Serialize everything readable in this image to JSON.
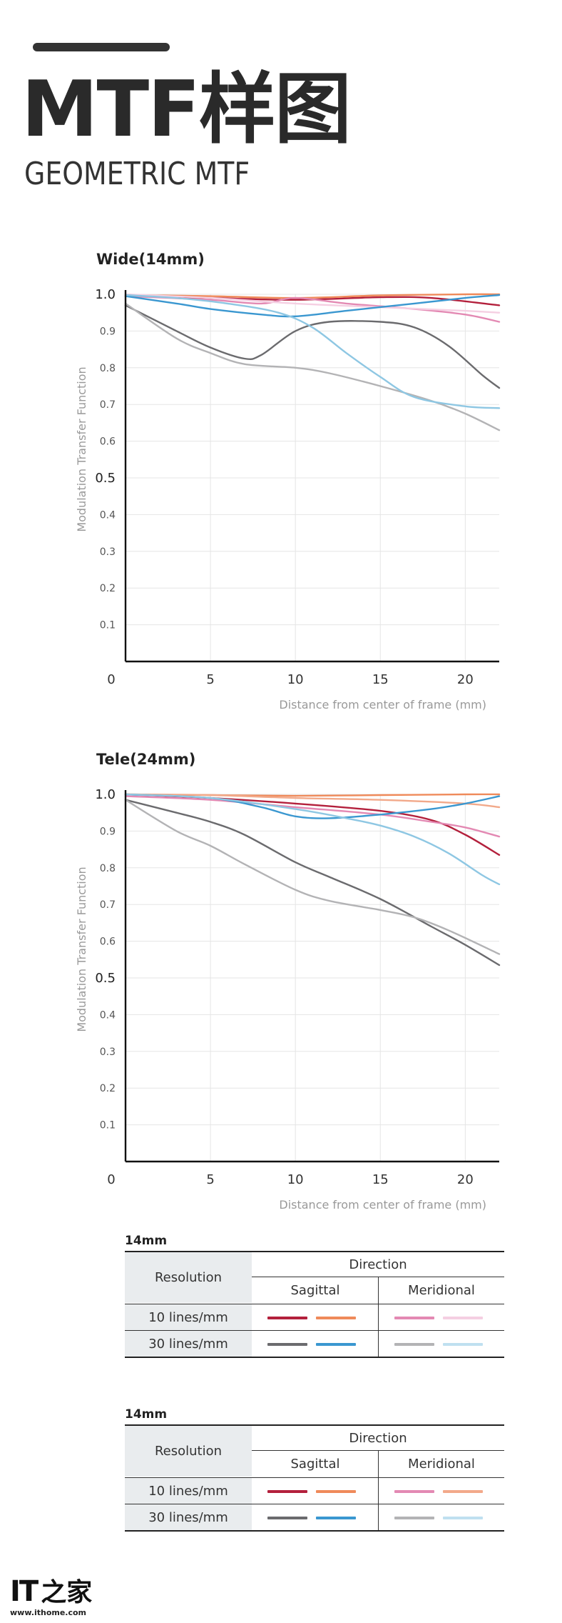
{
  "header": {
    "title": "MTF样图",
    "subtitle": "GEOMETRIC MTF"
  },
  "chart_data": [
    {
      "type": "line",
      "title": "Wide(14mm)",
      "xlabel": "Distance from center of frame (mm)",
      "ylabel": "Modulation Transfer Function",
      "xlim": [
        0,
        22
      ],
      "ylim": [
        0,
        1.0
      ],
      "xticks": [
        "0",
        "5",
        "10",
        "15",
        "20"
      ],
      "yticks": [
        "0.1",
        "0.2",
        "0.3",
        "0.4",
        "0.5",
        "0.6",
        "0.7",
        "0.8",
        "0.9",
        "1.0"
      ],
      "grid": true,
      "series": [
        {
          "color": "#b3203c",
          "points": [
            [
              0,
              0.995
            ],
            [
              5,
              0.99
            ],
            [
              10,
              0.985
            ],
            [
              15,
              0.992
            ],
            [
              18,
              0.99
            ],
            [
              22,
              0.97
            ]
          ]
        },
        {
          "color": "#ef8a5a",
          "points": [
            [
              0,
              0.998
            ],
            [
              5,
              0.995
            ],
            [
              10,
              0.99
            ],
            [
              15,
              0.997
            ],
            [
              20,
              1.0
            ],
            [
              22,
              1.0
            ]
          ]
        },
        {
          "color": "#e389b3",
          "points": [
            [
              0,
              0.995
            ],
            [
              5,
              0.985
            ],
            [
              8,
              0.975
            ],
            [
              10,
              0.99
            ],
            [
              13,
              0.975
            ],
            [
              17,
              0.96
            ],
            [
              20,
              0.945
            ],
            [
              22,
              0.925
            ]
          ]
        },
        {
          "color": "#f5cfe2",
          "points": [
            [
              0,
              1.0
            ],
            [
              5,
              0.99
            ],
            [
              10,
              0.975
            ],
            [
              15,
              0.965
            ],
            [
              20,
              0.955
            ],
            [
              22,
              0.95
            ]
          ]
        },
        {
          "color": "#6b6b6e",
          "points": [
            [
              0,
              0.97
            ],
            [
              3,
              0.9
            ],
            [
              5,
              0.855
            ],
            [
              7,
              0.825
            ],
            [
              8,
              0.835
            ],
            [
              10,
              0.9
            ],
            [
              12,
              0.925
            ],
            [
              15,
              0.925
            ],
            [
              17,
              0.91
            ],
            [
              19,
              0.86
            ],
            [
              21,
              0.78
            ],
            [
              22,
              0.745
            ]
          ]
        },
        {
          "color": "#3a97d0",
          "points": [
            [
              0,
              0.995
            ],
            [
              3,
              0.975
            ],
            [
              5,
              0.96
            ],
            [
              8,
              0.945
            ],
            [
              10,
              0.94
            ],
            [
              13,
              0.955
            ],
            [
              17,
              0.975
            ],
            [
              20,
              0.99
            ],
            [
              22,
              0.998
            ]
          ]
        },
        {
          "color": "#b3b3b5",
          "points": [
            [
              0,
              0.975
            ],
            [
              3,
              0.88
            ],
            [
              5,
              0.84
            ],
            [
              7,
              0.81
            ],
            [
              10,
              0.8
            ],
            [
              12,
              0.785
            ],
            [
              15,
              0.75
            ],
            [
              18,
              0.71
            ],
            [
              20,
              0.675
            ],
            [
              22,
              0.63
            ]
          ]
        },
        {
          "color": "#8ec7e3",
          "points": [
            [
              0,
              0.998
            ],
            [
              3,
              0.99
            ],
            [
              6,
              0.975
            ],
            [
              9,
              0.95
            ],
            [
              11,
              0.91
            ],
            [
              13,
              0.84
            ],
            [
              15,
              0.775
            ],
            [
              17,
              0.72
            ],
            [
              20,
              0.695
            ],
            [
              22,
              0.69
            ]
          ]
        }
      ]
    },
    {
      "type": "line",
      "title": "Tele(24mm)",
      "xlabel": "Distance from center of frame (mm)",
      "ylabel": "Modulation Transfer Function",
      "xlim": [
        0,
        22
      ],
      "ylim": [
        0,
        1.0
      ],
      "xticks": [
        "0",
        "5",
        "10",
        "15",
        "20"
      ],
      "yticks": [
        "0.1",
        "0.2",
        "0.3",
        "0.4",
        "0.5",
        "0.6",
        "0.7",
        "0.8",
        "0.9",
        "1.0"
      ],
      "grid": true,
      "series": [
        {
          "color": "#b3203c",
          "points": [
            [
              0,
              1.0
            ],
            [
              5,
              0.99
            ],
            [
              10,
              0.975
            ],
            [
              15,
              0.955
            ],
            [
              18,
              0.93
            ],
            [
              20,
              0.89
            ],
            [
              22,
              0.835
            ]
          ]
        },
        {
          "color": "#ef8a5a",
          "points": [
            [
              0,
              1.0
            ],
            [
              5,
              0.998
            ],
            [
              10,
              0.996
            ],
            [
              15,
              0.998
            ],
            [
              20,
              1.0
            ],
            [
              22,
              1.0
            ]
          ]
        },
        {
          "color": "#e389b3",
          "points": [
            [
              0,
              0.995
            ],
            [
              5,
              0.985
            ],
            [
              10,
              0.965
            ],
            [
              15,
              0.945
            ],
            [
              18,
              0.925
            ],
            [
              20,
              0.91
            ],
            [
              22,
              0.885
            ]
          ]
        },
        {
          "color": "#f2a98a",
          "points": [
            [
              0,
              1.0
            ],
            [
              5,
              0.998
            ],
            [
              10,
              0.99
            ],
            [
              15,
              0.985
            ],
            [
              20,
              0.975
            ],
            [
              22,
              0.965
            ]
          ]
        },
        {
          "color": "#6b6b6e",
          "points": [
            [
              0,
              0.985
            ],
            [
              3,
              0.95
            ],
            [
              5,
              0.925
            ],
            [
              7,
              0.89
            ],
            [
              10,
              0.815
            ],
            [
              12,
              0.775
            ],
            [
              15,
              0.715
            ],
            [
              18,
              0.64
            ],
            [
              20,
              0.59
            ],
            [
              22,
              0.535
            ]
          ]
        },
        {
          "color": "#3a97d0",
          "points": [
            [
              0,
              1.0
            ],
            [
              5,
              0.99
            ],
            [
              8,
              0.965
            ],
            [
              10,
              0.94
            ],
            [
              12,
              0.935
            ],
            [
              15,
              0.945
            ],
            [
              18,
              0.96
            ],
            [
              20,
              0.975
            ],
            [
              22,
              0.995
            ]
          ]
        },
        {
          "color": "#b3b3b5",
          "points": [
            [
              0,
              0.985
            ],
            [
              3,
              0.9
            ],
            [
              5,
              0.86
            ],
            [
              7,
              0.81
            ],
            [
              10,
              0.74
            ],
            [
              12,
              0.71
            ],
            [
              15,
              0.685
            ],
            [
              17,
              0.665
            ],
            [
              19,
              0.63
            ],
            [
              22,
              0.565
            ]
          ]
        },
        {
          "color": "#8ec7e3",
          "points": [
            [
              0,
              1.0
            ],
            [
              5,
              0.99
            ],
            [
              10,
              0.96
            ],
            [
              13,
              0.935
            ],
            [
              15,
              0.915
            ],
            [
              17,
              0.885
            ],
            [
              19,
              0.84
            ],
            [
              21,
              0.78
            ],
            [
              22,
              0.755
            ]
          ]
        }
      ]
    }
  ],
  "legends": [
    {
      "heading": "14mm",
      "resolution_label": "Resolution",
      "direction_label": "Direction",
      "sagittal_label": "Sagittal",
      "meridional_label": "Meridional",
      "rows": [
        {
          "label": "10 lines/mm",
          "colors": [
            "#b3203c",
            "#ef8a5a",
            "#e389b3",
            "#f5cfe2"
          ]
        },
        {
          "label": "30 lines/mm",
          "colors": [
            "#6b6b6e",
            "#3a97d0",
            "#b3b3b5",
            "#bfe0f0"
          ]
        }
      ]
    },
    {
      "heading": "14mm",
      "resolution_label": "Resolution",
      "direction_label": "Direction",
      "sagittal_label": "Sagittal",
      "meridional_label": "Meridional",
      "rows": [
        {
          "label": "10 lines/mm",
          "colors": [
            "#b3203c",
            "#ef8a5a",
            "#e389b3",
            "#f2a98a"
          ]
        },
        {
          "label": "30 lines/mm",
          "colors": [
            "#6b6b6e",
            "#3a97d0",
            "#b3b3b5",
            "#bfe0f0"
          ]
        }
      ]
    }
  ],
  "footer": {
    "logo_it": "IT",
    "logo_zh": "之家",
    "url": "www.ithome.com"
  }
}
